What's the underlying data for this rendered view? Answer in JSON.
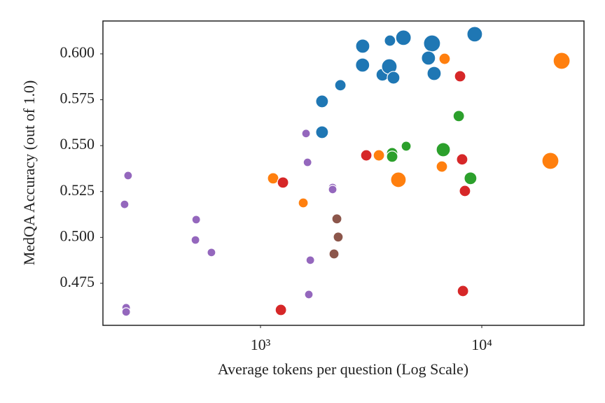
{
  "chart_data": {
    "type": "scatter",
    "x_label": "Average tokens per question (Log Scale)",
    "y_label": "MedQA Accuracy (out of 1.0)",
    "x_scale": "log",
    "xlim": [
      194,
      28970
    ],
    "ylim": [
      0.4521,
      0.6179
    ],
    "xticks": [
      {
        "value": 1000,
        "label": "10³"
      },
      {
        "value": 10000,
        "label": "10⁴"
      }
    ],
    "yticks": [
      0.475,
      {
        "value": 0.5,
        "label": "0.500"
      },
      0.525,
      {
        "value": 0.55,
        "label": "0.550"
      },
      0.575,
      {
        "value": 0.6,
        "label": "0.600"
      }
    ],
    "grid": false,
    "series": [
      {
        "color": "#1f77b4",
        "x": [
          2896,
          3846,
          4426,
          5957,
          9290,
          2892,
          3556,
          3820,
          3990,
          5741,
          6090,
          2296,
          1897,
          1897
        ],
        "values": [
          0.6042,
          0.6072,
          0.6088,
          0.6057,
          0.6107,
          0.5939,
          0.5886,
          0.5931,
          0.587,
          0.5977,
          0.5893,
          0.5829,
          0.5741,
          0.5573
        ],
        "sizes": [
          10,
          8,
          11,
          12,
          11,
          10,
          9,
          11,
          9,
          10,
          10,
          8,
          9,
          9
        ]
      },
      {
        "color": "#ff7f0e",
        "x": [
          22960,
          6793,
          3428,
          4199,
          6600,
          20420,
          1140,
          1560
        ],
        "values": [
          0.5962,
          0.5973,
          0.5447,
          0.5314,
          0.5386,
          0.5417,
          0.5322,
          0.5188
        ],
        "sizes": [
          12,
          8,
          8,
          11,
          8,
          12,
          8,
          7
        ]
      },
      {
        "color": "#d62728",
        "x": [
          7980,
          3006,
          8150,
          1263,
          8390,
          1236,
          8220
        ],
        "values": [
          0.5878,
          0.5447,
          0.5425,
          0.5299,
          0.5253,
          0.4605,
          0.4708
        ],
        "sizes": [
          8,
          8,
          8,
          8,
          8,
          8,
          8
        ]
      },
      {
        "color": "#2ca02c",
        "x": [
          7870,
          4553,
          3935,
          3935,
          6698,
          8890
        ],
        "values": [
          0.5661,
          0.5497,
          0.5459,
          0.544,
          0.5478,
          0.5322
        ],
        "sizes": [
          8,
          7,
          8,
          8,
          10,
          9
        ]
      },
      {
        "color": "#9467bd",
        "x": [
          252,
          243,
          512,
          508,
          600,
          1606,
          1631,
          2118,
          2118,
          1679,
          1653,
          247,
          247
        ],
        "values": [
          0.5337,
          0.518,
          0.5097,
          0.4986,
          0.4918,
          0.5566,
          0.5409,
          0.5272,
          0.5261,
          0.4876,
          0.4689,
          0.4617,
          0.4594
        ],
        "sizes": [
          6,
          6,
          6,
          6,
          6,
          6,
          6,
          6,
          6,
          6,
          6,
          6,
          6
        ]
      },
      {
        "color": "#8c564b",
        "x": [
          2213,
          2244,
          2149
        ],
        "values": [
          0.5101,
          0.5002,
          0.491
        ],
        "sizes": [
          7,
          7,
          7
        ]
      }
    ]
  }
}
